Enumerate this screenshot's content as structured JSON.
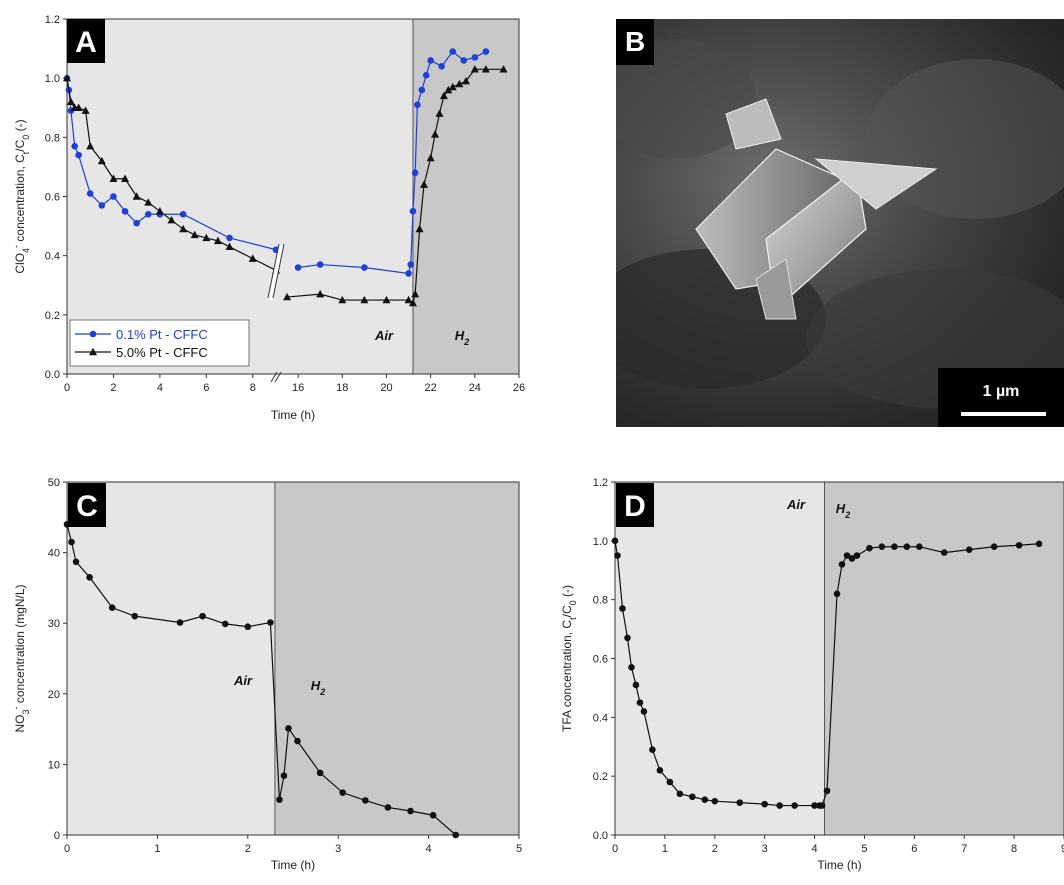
{
  "figure": {
    "panel_letters": [
      "A",
      "B",
      "C",
      "D"
    ],
    "panel_b": {
      "scale_bar_label": "1 µm"
    }
  },
  "colors": {
    "blue_series": "#1f3fd6",
    "black_series": "#111111",
    "air_shade": "#e6e6e6",
    "h2_shade": "#c8c8c8"
  },
  "chart_data": [
    {
      "panel": "A",
      "type": "line",
      "xlabel": "Time (h)",
      "ylabel": "ClO4- concentration, Ct/C0 (-)",
      "ylim": [
        0,
        1.2
      ],
      "x_break": [
        9,
        15
      ],
      "xticks": [
        0,
        2,
        4,
        6,
        8,
        16,
        18,
        20,
        22,
        24,
        26
      ],
      "yticks": [
        "0.0",
        "0.2",
        "0.4",
        "0.6",
        "0.8",
        "1.0",
        "1.2"
      ],
      "regions": [
        {
          "label": "Air",
          "x0": 0,
          "x1": 21.2
        },
        {
          "label": "H2",
          "x0": 21.2,
          "x1": 26
        }
      ],
      "legend": {
        "position": "bottom-left"
      },
      "series": [
        {
          "name": "0.1% Pt - CFFC",
          "marker": "circle",
          "color": "#1f3fd6",
          "x": [
            0,
            0.08,
            0.17,
            0.33,
            0.5,
            1,
            1.5,
            2,
            2.5,
            3,
            3.5,
            4,
            5,
            7,
            9,
            16,
            17,
            19,
            21,
            21.1,
            21.2,
            21.3,
            21.4,
            21.6,
            21.8,
            22,
            22.5,
            23,
            23.5,
            24,
            24.5
          ],
          "y": [
            1.0,
            0.96,
            0.89,
            0.77,
            0.74,
            0.61,
            0.57,
            0.6,
            0.55,
            0.51,
            0.54,
            0.54,
            0.54,
            0.46,
            0.42,
            0.36,
            0.37,
            0.36,
            0.34,
            0.37,
            0.55,
            0.68,
            0.91,
            0.96,
            1.01,
            1.06,
            1.04,
            1.09,
            1.06,
            1.07,
            1.09
          ]
        },
        {
          "name": "5.0% Pt - CFFC",
          "marker": "triangle",
          "color": "#111111",
          "x": [
            0,
            0.17,
            0.33,
            0.5,
            0.8,
            1,
            1.5,
            2,
            2.5,
            3,
            3.5,
            4,
            4.5,
            5,
            5.5,
            6,
            6.5,
            7,
            8,
            9,
            15.5,
            17,
            18,
            19,
            20,
            21,
            21.2,
            21.3,
            21.5,
            21.7,
            22,
            22.2,
            22.4,
            22.6,
            22.8,
            23,
            23.3,
            23.6,
            24,
            24.5,
            25.3
          ],
          "y": [
            1.0,
            0.92,
            0.9,
            0.9,
            0.89,
            0.77,
            0.72,
            0.66,
            0.66,
            0.6,
            0.58,
            0.55,
            0.52,
            0.49,
            0.47,
            0.46,
            0.45,
            0.43,
            0.39,
            0.35,
            0.26,
            0.27,
            0.25,
            0.25,
            0.25,
            0.25,
            0.24,
            0.27,
            0.49,
            0.64,
            0.73,
            0.81,
            0.88,
            0.94,
            0.96,
            0.97,
            0.98,
            0.99,
            1.03,
            1.03,
            1.03
          ]
        }
      ]
    },
    {
      "panel": "C",
      "type": "line",
      "xlabel": "Time (h)",
      "ylabel": "NO3- concentration (mgN/L)",
      "xlim": [
        0,
        5
      ],
      "ylim": [
        0,
        50
      ],
      "xticks": [
        "0",
        "1",
        "2",
        "3",
        "4",
        "5"
      ],
      "yticks": [
        "0",
        "10",
        "20",
        "30",
        "40",
        "50"
      ],
      "regions": [
        {
          "label": "Air",
          "x0": 0,
          "x1": 2.3
        },
        {
          "label": "H2",
          "x0": 2.3,
          "x1": 5
        }
      ],
      "series": [
        {
          "marker": "circle",
          "color": "#111111",
          "x": [
            0,
            0.05,
            0.1,
            0.25,
            0.5,
            0.75,
            1.25,
            1.5,
            1.75,
            2.0,
            2.25,
            2.35,
            2.4,
            2.45,
            2.55,
            2.8,
            3.05,
            3.3,
            3.55,
            3.8,
            4.05,
            4.3
          ],
          "y": [
            44,
            41.5,
            38.7,
            36.5,
            32.2,
            31,
            30.1,
            31,
            29.9,
            29.5,
            30.1,
            5,
            8.4,
            15.1,
            13.3,
            8.8,
            6,
            4.9,
            3.9,
            3.4,
            2.8,
            0
          ]
        }
      ]
    },
    {
      "panel": "D",
      "type": "line",
      "xlabel": "Time (h)",
      "ylabel": "TFA concentration, Ct/C0 (-)",
      "xlim": [
        0,
        9
      ],
      "ylim": [
        0,
        1.2
      ],
      "xticks": [
        "0",
        "1",
        "2",
        "3",
        "4",
        "5",
        "6",
        "7",
        "8",
        "9"
      ],
      "yticks": [
        "0.0",
        "0.2",
        "0.4",
        "0.6",
        "0.8",
        "1.0",
        "1.2"
      ],
      "regions": [
        {
          "label": "Air",
          "x0": 0,
          "x1": 4.2
        },
        {
          "label": "H2",
          "x0": 4.2,
          "x1": 9
        }
      ],
      "series": [
        {
          "marker": "circle",
          "color": "#111111",
          "x": [
            0,
            0.05,
            0.15,
            0.25,
            0.33,
            0.42,
            0.5,
            0.58,
            0.75,
            0.9,
            1.1,
            1.3,
            1.55,
            1.8,
            2.0,
            2.5,
            3.0,
            3.3,
            3.6,
            4.0,
            4.1,
            4.15,
            4.25,
            4.45,
            4.55,
            4.65,
            4.75,
            4.85,
            5.1,
            5.35,
            5.6,
            5.85,
            6.1,
            6.6,
            7.1,
            7.6,
            8.1,
            8.5
          ],
          "y": [
            1.0,
            0.95,
            0.77,
            0.67,
            0.57,
            0.51,
            0.45,
            0.42,
            0.29,
            0.22,
            0.18,
            0.14,
            0.13,
            0.12,
            0.115,
            0.11,
            0.105,
            0.1,
            0.1,
            0.1,
            0.1,
            0.1,
            0.15,
            0.82,
            0.92,
            0.95,
            0.94,
            0.95,
            0.975,
            0.98,
            0.98,
            0.98,
            0.98,
            0.96,
            0.97,
            0.98,
            0.985,
            0.99
          ]
        }
      ]
    }
  ]
}
